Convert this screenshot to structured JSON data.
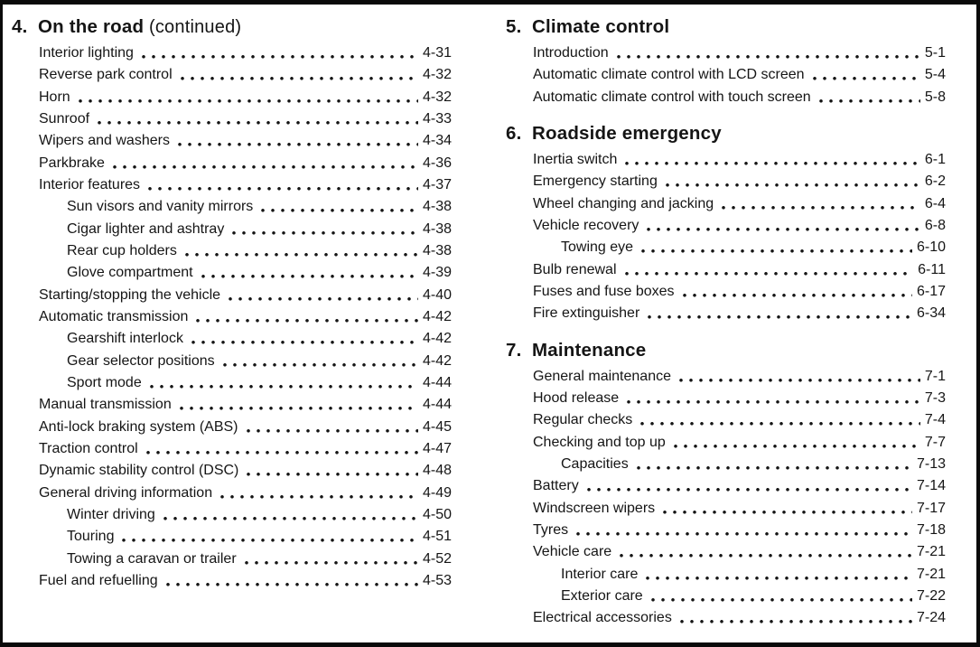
{
  "colors": {
    "ink": "#151515",
    "paper": "#ffffff",
    "frame": "#0a0a0a"
  },
  "columns": [
    {
      "sections": [
        {
          "number": "4.",
          "title": "On the road",
          "suffix": " (continued)",
          "entries": [
            {
              "label": "Interior lighting",
              "page": "4-31",
              "indent": 0
            },
            {
              "label": "Reverse park control",
              "page": "4-32",
              "indent": 0
            },
            {
              "label": "Horn",
              "page": "4-32",
              "indent": 0
            },
            {
              "label": "Sunroof",
              "page": "4-33",
              "indent": 0
            },
            {
              "label": "Wipers and washers",
              "page": "4-34",
              "indent": 0
            },
            {
              "label": "Parkbrake",
              "page": "4-36",
              "indent": 0
            },
            {
              "label": "Interior features",
              "page": "4-37",
              "indent": 0
            },
            {
              "label": "Sun visors and vanity mirrors",
              "page": "4-38",
              "indent": 1
            },
            {
              "label": "Cigar lighter and ashtray",
              "page": "4-38",
              "indent": 1
            },
            {
              "label": "Rear cup holders",
              "page": "4-38",
              "indent": 1
            },
            {
              "label": "Glove compartment",
              "page": "4-39",
              "indent": 1
            },
            {
              "label": "Starting/stopping the vehicle",
              "page": "4-40",
              "indent": 0
            },
            {
              "label": "Automatic transmission",
              "page": "4-42",
              "indent": 0
            },
            {
              "label": "Gearshift interlock",
              "page": "4-42",
              "indent": 1
            },
            {
              "label": "Gear selector positions",
              "page": "4-42",
              "indent": 1
            },
            {
              "label": "Sport mode",
              "page": "4-44",
              "indent": 1
            },
            {
              "label": "Manual transmission",
              "page": "4-44",
              "indent": 0
            },
            {
              "label": "Anti-lock braking system (ABS)",
              "page": "4-45",
              "indent": 0
            },
            {
              "label": "Traction control",
              "page": "4-47",
              "indent": 0
            },
            {
              "label": "Dynamic stability control (DSC)",
              "page": "4-48",
              "indent": 0
            },
            {
              "label": "General driving information",
              "page": "4-49",
              "indent": 0
            },
            {
              "label": "Winter driving",
              "page": "4-50",
              "indent": 1
            },
            {
              "label": "Touring",
              "page": "4-51",
              "indent": 1
            },
            {
              "label": "Towing a caravan or trailer",
              "page": "4-52",
              "indent": 1
            },
            {
              "label": "Fuel and refuelling",
              "page": "4-53",
              "indent": 0
            }
          ]
        }
      ]
    },
    {
      "sections": [
        {
          "number": "5.",
          "title": "Climate control",
          "suffix": "",
          "entries": [
            {
              "label": "Introduction",
              "page": "5-1",
              "indent": 0
            },
            {
              "label": "Automatic climate control with LCD screen",
              "page": "5-4",
              "indent": 0
            },
            {
              "label": "Automatic climate control with touch screen",
              "page": "5-8",
              "indent": 0
            }
          ]
        },
        {
          "number": "6.",
          "title": "Roadside emergency",
          "suffix": "",
          "entries": [
            {
              "label": "Inertia switch",
              "page": "6-1",
              "indent": 0
            },
            {
              "label": "Emergency starting",
              "page": "6-2",
              "indent": 0
            },
            {
              "label": "Wheel changing and jacking",
              "page": "6-4",
              "indent": 0
            },
            {
              "label": "Vehicle recovery",
              "page": "6-8",
              "indent": 0
            },
            {
              "label": "Towing eye",
              "page": "6-10",
              "indent": 1
            },
            {
              "label": "Bulb renewal",
              "page": "6-11",
              "indent": 0
            },
            {
              "label": "Fuses and fuse boxes",
              "page": "6-17",
              "indent": 0
            },
            {
              "label": "Fire extinguisher",
              "page": "6-34",
              "indent": 0
            }
          ]
        },
        {
          "number": "7.",
          "title": "Maintenance",
          "suffix": "",
          "entries": [
            {
              "label": "General maintenance",
              "page": "7-1",
              "indent": 0
            },
            {
              "label": "Hood release",
              "page": "7-3",
              "indent": 0
            },
            {
              "label": "Regular checks",
              "page": "7-4",
              "indent": 0
            },
            {
              "label": "Checking and top up",
              "page": "7-7",
              "indent": 0
            },
            {
              "label": "Capacities",
              "page": "7-13",
              "indent": 1
            },
            {
              "label": "Battery",
              "page": "7-14",
              "indent": 0
            },
            {
              "label": "Windscreen wipers",
              "page": "7-17",
              "indent": 0
            },
            {
              "label": "Tyres",
              "page": "7-18",
              "indent": 0
            },
            {
              "label": "Vehicle care",
              "page": "7-21",
              "indent": 0
            },
            {
              "label": "Interior care",
              "page": "7-21",
              "indent": 1
            },
            {
              "label": "Exterior care",
              "page": "7-22",
              "indent": 1
            },
            {
              "label": "Electrical accessories",
              "page": "7-24",
              "indent": 0
            }
          ]
        }
      ]
    }
  ]
}
